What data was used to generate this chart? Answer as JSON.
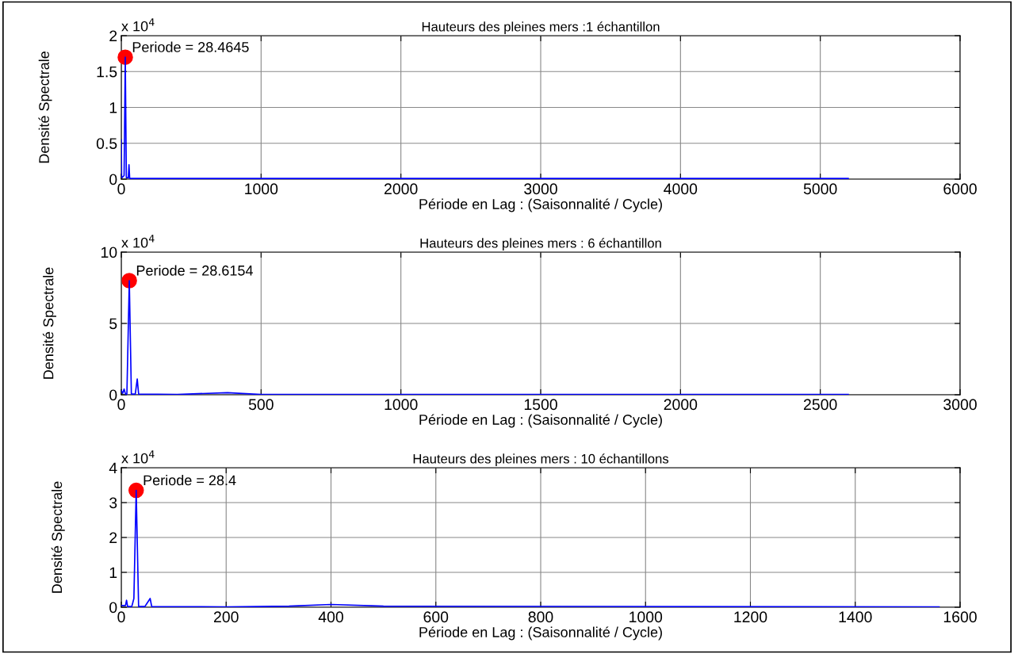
{
  "chart_data": [
    {
      "type": "line",
      "title": "Hauteurs des pleines mers :1 échantillon",
      "xlabel": "Période en Lag : (Saisonnalité / Cycle)",
      "ylabel": "Densité Spectrale",
      "annotations": [
        "x 10$^{4}$",
        {
          "text": "Periode = 28.4645",
          "x": 28.4645,
          "y": 1.7
        }
      ],
      "xlim": [
        0,
        6000
      ],
      "xticks": [
        0,
        1000,
        2000,
        3000,
        4000,
        5000,
        6000
      ],
      "ylim": [
        0,
        2
      ],
      "yticks": [
        0,
        0.5,
        1,
        1.5,
        2
      ],
      "grid": true,
      "series": [
        {
          "color": "#0000ff",
          "x": [
            0,
            2,
            5,
            10,
            20,
            28.46,
            36,
            50,
            55,
            60,
            200,
            5200
          ],
          "values": [
            0.55,
            0.05,
            0.02,
            0.03,
            0.05,
            1.7,
            0.02,
            0.02,
            0.2,
            0.01,
            0.01,
            0.01
          ],
          "marker": "none"
        },
        {
          "type": "scatter",
          "color": "#ff0000",
          "x": [
            28.4645
          ],
          "values": [
            1.7
          ],
          "marker": "circle"
        }
      ]
    },
    {
      "type": "line",
      "title": "Hauteurs des pleines mers : 6 échantillon",
      "xlabel": "Période en Lag : (Saisonnalité / Cycle)",
      "ylabel": "Densité Spectrale",
      "annotations": [
        "x 10$^{4}$",
        {
          "text": "Periode = 28.6154",
          "x": 28.6154,
          "y": 8
        }
      ],
      "xlim": [
        0,
        3000
      ],
      "xticks": [
        0,
        500,
        1000,
        1500,
        2000,
        2500,
        3000
      ],
      "ylim": [
        0,
        10
      ],
      "yticks": [
        0,
        5,
        10
      ],
      "grid": true,
      "series": [
        {
          "color": "#0000ff",
          "x": [
            0,
            5,
            10,
            15,
            20,
            28.6,
            36,
            50,
            57,
            62,
            200,
            380,
            500,
            2600
          ],
          "values": [
            0.3,
            0.1,
            0.4,
            0.05,
            0.05,
            8,
            0.05,
            0.05,
            1.1,
            0.05,
            0.02,
            0.15,
            0.02,
            0.02
          ],
          "marker": "none"
        },
        {
          "type": "scatter",
          "color": "#ff0000",
          "x": [
            28.6154
          ],
          "values": [
            8
          ],
          "marker": "circle"
        }
      ]
    },
    {
      "type": "line",
      "title": "Hauteurs des pleines mers : 10 échantillons",
      "xlabel": "Période en Lag : (Saisonnalité / Cycle)",
      "ylabel": "Densité Spectrale",
      "annotations": [
        "x 10$^{4}$",
        {
          "text": "Periode = 28.4",
          "x": 28.4,
          "y": 3.35
        }
      ],
      "xlim": [
        0,
        1600
      ],
      "xticks": [
        0,
        200,
        400,
        600,
        800,
        1000,
        1200,
        1400,
        1600
      ],
      "ylim": [
        0,
        4
      ],
      "yticks": [
        0,
        1,
        2,
        3,
        4
      ],
      "grid": true,
      "series": [
        {
          "color": "#0000ff",
          "x": [
            0,
            8,
            10,
            12,
            20,
            24,
            28.4,
            33,
            45,
            55,
            58,
            200,
            320,
            400,
            500,
            1560
          ],
          "values": [
            0.05,
            0.05,
            0.2,
            0.02,
            0.02,
            0.25,
            3.35,
            0.02,
            0.02,
            0.25,
            0.02,
            0.01,
            0.03,
            0.08,
            0.03,
            0.01
          ],
          "marker": "none"
        },
        {
          "type": "scatter",
          "color": "#ff0000",
          "x": [
            28.4
          ],
          "values": [
            3.35
          ],
          "marker": "circle"
        }
      ]
    }
  ]
}
